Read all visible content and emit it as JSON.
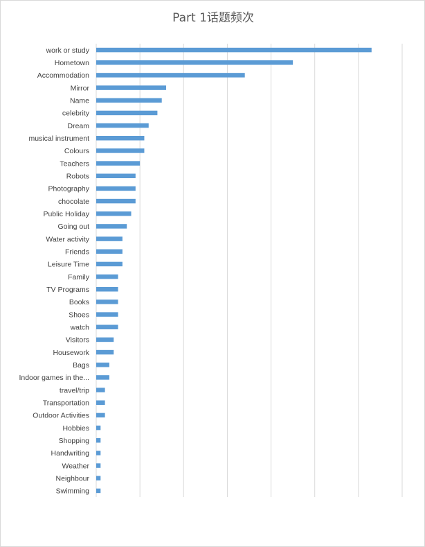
{
  "chart_data": {
    "type": "bar",
    "orientation": "horizontal",
    "title": "Part 1话题频次",
    "xlabel": "",
    "ylabel": "",
    "xlim": [
      0,
      70
    ],
    "grid": true,
    "legend": "none",
    "bar_color": "#5b9bd5",
    "grid_color": "#d9d9d9",
    "categories": [
      "work or study",
      "Hometown",
      "Accommodation",
      "Mirror",
      "Name",
      "celebrity",
      "Dream",
      "musical instrument",
      "Colours",
      "Teachers",
      "Robots",
      "Photography",
      "chocolate",
      "Public Holiday",
      "Going out",
      "Water activity",
      "Friends",
      "Leisure Time",
      "Family",
      "TV Programs",
      "Books",
      "Shoes",
      "watch",
      "Visitors",
      "Housework",
      "Bags",
      "Indoor games in the...",
      "travel/trip",
      "Transportation",
      "Outdoor Activities",
      "Hobbies",
      "Shopping",
      "Handwriting",
      "Weather",
      "Neighbour",
      "Swimming"
    ],
    "values": [
      63,
      45,
      34,
      16,
      15,
      14,
      12,
      11,
      11,
      10,
      9,
      9,
      9,
      8,
      7,
      6,
      6,
      6,
      5,
      5,
      5,
      5,
      5,
      4,
      4,
      3,
      3,
      2,
      2,
      2,
      1,
      1,
      1,
      1,
      1,
      1
    ]
  }
}
